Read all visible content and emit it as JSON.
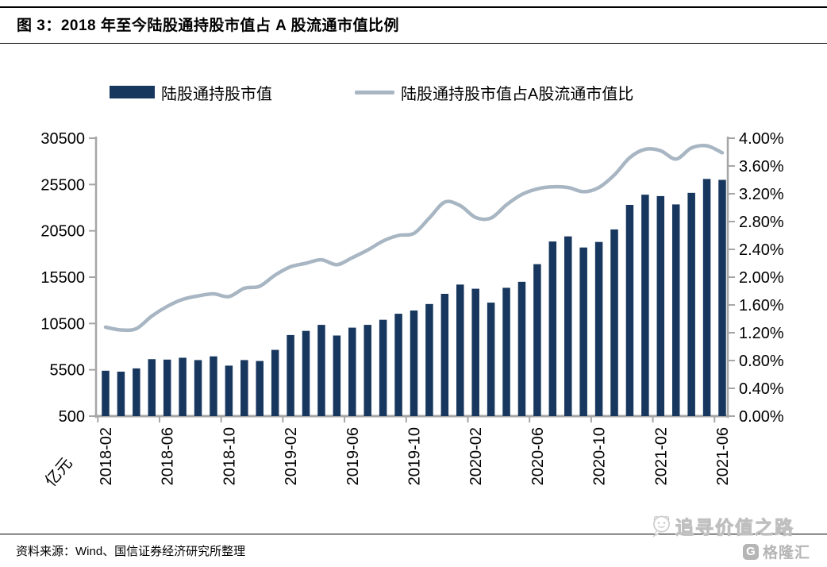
{
  "header": {
    "title": "图 3：2018 年至今陆股通持股市值占 A 股流通市值比例"
  },
  "legend": {
    "bar_label": "陆股通持股市值",
    "line_label": "陆股通持股市值占A股流通市值比"
  },
  "colors": {
    "bar": "#17375E",
    "line": "#A8B6C3",
    "axis": "#A6A6A6",
    "text": "#000000",
    "watermark": "#c9c9c9"
  },
  "chart_data": {
    "type": "bar+line",
    "categories": [
      "2018-02",
      "2018-03",
      "2018-04",
      "2018-05",
      "2018-06",
      "2018-07",
      "2018-08",
      "2018-09",
      "2018-10",
      "2018-11",
      "2018-12",
      "2019-01",
      "2019-02",
      "2019-03",
      "2019-04",
      "2019-05",
      "2019-06",
      "2019-07",
      "2019-08",
      "2019-09",
      "2019-10",
      "2019-11",
      "2019-12",
      "2020-01",
      "2020-02",
      "2020-03",
      "2020-04",
      "2020-05",
      "2020-06",
      "2020-07",
      "2020-08",
      "2020-09",
      "2020-10",
      "2020-11",
      "2020-12",
      "2021-01",
      "2021-02",
      "2021-03",
      "2021-04",
      "2021-05",
      "2021-06"
    ],
    "series": [
      {
        "name": "陆股通持股市值",
        "type": "bar",
        "axis": "left",
        "unit": "亿元",
        "color": "#17375E",
        "values": [
          5400,
          5300,
          5650,
          6650,
          6600,
          6800,
          6550,
          6950,
          5950,
          6550,
          6450,
          7650,
          9250,
          9700,
          10350,
          9200,
          10050,
          10350,
          10900,
          11550,
          11900,
          12600,
          13700,
          14700,
          14250,
          12750,
          14350,
          15000,
          16900,
          19350,
          19900,
          18700,
          19300,
          20650,
          23300,
          24400,
          24250,
          23350,
          24600,
          26100,
          26000
        ]
      },
      {
        "name": "陆股通持股市值占A股流通市值比",
        "type": "line",
        "axis": "right",
        "unit": "%",
        "color": "#A8B6C3",
        "values": [
          1.28,
          1.24,
          1.26,
          1.44,
          1.58,
          1.68,
          1.73,
          1.76,
          1.72,
          1.84,
          1.87,
          2.03,
          2.15,
          2.2,
          2.25,
          2.18,
          2.28,
          2.39,
          2.52,
          2.6,
          2.63,
          2.85,
          3.08,
          3.03,
          2.86,
          2.85,
          3.04,
          3.19,
          3.27,
          3.3,
          3.29,
          3.23,
          3.29,
          3.47,
          3.72,
          3.84,
          3.82,
          3.7,
          3.86,
          3.89,
          3.79
        ]
      }
    ],
    "left_axis": {
      "label": "亿元",
      "min": 500,
      "max": 30500,
      "tick_values": [
        500,
        5500,
        10500,
        15500,
        20500,
        25500,
        30500
      ],
      "tick_labels": [
        "500",
        "5500",
        "10500",
        "15500",
        "20500",
        "25500",
        "30500"
      ]
    },
    "right_axis": {
      "min": 0,
      "max": 4,
      "tick_values": [
        0,
        0.4,
        0.8,
        1.2,
        1.6,
        2.0,
        2.4,
        2.8,
        3.2,
        3.6,
        4.0
      ],
      "tick_labels": [
        "0.00%",
        "0.40%",
        "0.80%",
        "1.20%",
        "1.60%",
        "2.00%",
        "2.40%",
        "2.80%",
        "3.20%",
        "3.60%",
        "4.00%"
      ]
    },
    "x_tick_labels": [
      "2018-02",
      "2018-06",
      "2018-10",
      "2019-02",
      "2019-06",
      "2019-10",
      "2020-02",
      "2020-06",
      "2020-10",
      "2021-02",
      "2021-06"
    ],
    "grid": false,
    "legend_position": "top"
  },
  "footer": {
    "source": "资料来源：Wind、国信证券经济研究所整理"
  },
  "watermark": {
    "text": "追寻价值之路",
    "logo_text": "格隆汇",
    "logo_letter": "G"
  }
}
